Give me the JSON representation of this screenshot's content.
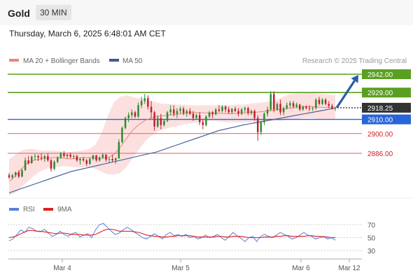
{
  "header": {
    "title": "Gold",
    "timeframe": "30 MIN"
  },
  "datetime": "Thursday, March 6, 2025 6:48:01 AM CET",
  "legend": {
    "ma20_bb": "MA 20 + Bollinger Bands",
    "ma50": "MA 50",
    "ma20_color": "#f08080",
    "ma50_color": "#3a5a9a"
  },
  "copyright": "Research © 2025 Trading Central",
  "colors": {
    "up": "#2e8b2e",
    "down": "#c0202c",
    "bb_fill": "#fbd5d5",
    "resistance": "#5aa020",
    "pivot": "#2a64d8",
    "support": "#e06060",
    "current": "#333333",
    "arrow": "#2a5ca8",
    "rsi": "#5b7fd8",
    "rsi_ma": "#e02020"
  },
  "levels": [
    {
      "value": 2942.0,
      "label": "2942.00",
      "kind": "resistance"
    },
    {
      "value": 2929.0,
      "label": "2929.00",
      "kind": "resistance"
    },
    {
      "value": 2918.25,
      "label": "2918.25",
      "kind": "current"
    },
    {
      "value": 2910.0,
      "label": "2910.00",
      "kind": "pivot"
    },
    {
      "value": 2900.0,
      "label": "2900.00",
      "kind": "support"
    },
    {
      "value": 2886.0,
      "label": "2886.00",
      "kind": "support"
    }
  ],
  "xaxis": {
    "ticks": [
      "Mar 4",
      "Mar 5",
      "Mar 6",
      "Mar 12"
    ]
  },
  "rsi_panel": {
    "legend_rsi": "RSI",
    "legend_ma": "9MA",
    "ticks": [
      "70",
      "50",
      "30"
    ],
    "levels": [
      70,
      50,
      30
    ],
    "ylim": [
      20,
      80
    ]
  },
  "chart_data": {
    "type": "candlestick",
    "ylim": [
      2856,
      2950
    ],
    "candles_ohlc": [
      [
        2870.5,
        2872.0,
        2868.0,
        2869.0
      ],
      [
        2869.0,
        2871.5,
        2867.5,
        2870.5
      ],
      [
        2870.5,
        2873.0,
        2869.0,
        2872.5
      ],
      [
        2872.5,
        2874.0,
        2868.5,
        2869.5
      ],
      [
        2869.5,
        2875.0,
        2869.0,
        2874.0
      ],
      [
        2874.0,
        2883.0,
        2873.5,
        2881.0
      ],
      [
        2881.0,
        2884.0,
        2878.0,
        2879.0
      ],
      [
        2879.0,
        2884.5,
        2878.5,
        2883.5
      ],
      [
        2883.5,
        2885.5,
        2881.0,
        2884.0
      ],
      [
        2884.0,
        2885.0,
        2880.5,
        2883.0
      ],
      [
        2883.0,
        2886.0,
        2881.0,
        2882.5
      ],
      [
        2882.5,
        2885.0,
        2880.0,
        2884.0
      ],
      [
        2884.0,
        2886.0,
        2880.0,
        2881.0
      ],
      [
        2881.0,
        2882.0,
        2873.0,
        2875.0
      ],
      [
        2875.0,
        2881.0,
        2874.0,
        2880.0
      ],
      [
        2880.0,
        2884.0,
        2879.0,
        2883.0
      ],
      [
        2883.0,
        2887.0,
        2882.0,
        2886.0
      ],
      [
        2886.0,
        2887.5,
        2883.0,
        2884.0
      ],
      [
        2884.0,
        2886.0,
        2882.0,
        2885.0
      ],
      [
        2885.0,
        2886.5,
        2882.5,
        2883.5
      ],
      [
        2883.5,
        2885.0,
        2882.0,
        2884.0
      ],
      [
        2884.0,
        2885.0,
        2880.0,
        2881.0
      ],
      [
        2881.0,
        2883.0,
        2878.0,
        2882.0
      ],
      [
        2882.0,
        2883.5,
        2880.0,
        2881.0
      ],
      [
        2881.0,
        2882.0,
        2877.0,
        2878.5
      ],
      [
        2878.5,
        2883.0,
        2878.0,
        2882.0
      ],
      [
        2882.0,
        2885.0,
        2881.0,
        2884.5
      ],
      [
        2884.5,
        2885.0,
        2880.0,
        2881.0
      ],
      [
        2881.0,
        2884.0,
        2880.0,
        2883.0
      ],
      [
        2883.0,
        2886.0,
        2882.0,
        2885.0
      ],
      [
        2885.0,
        2885.5,
        2880.0,
        2881.5
      ],
      [
        2881.5,
        2883.0,
        2879.0,
        2882.0
      ],
      [
        2882.0,
        2885.0,
        2880.0,
        2881.0
      ],
      [
        2881.0,
        2883.0,
        2878.5,
        2882.5
      ],
      [
        2882.5,
        2896.0,
        2882.0,
        2894.0
      ],
      [
        2894.0,
        2905.0,
        2893.0,
        2904.0
      ],
      [
        2904.0,
        2912.0,
        2903.0,
        2911.0
      ],
      [
        2911.0,
        2915.0,
        2908.0,
        2913.0
      ],
      [
        2913.0,
        2917.0,
        2911.0,
        2915.0
      ],
      [
        2915.0,
        2916.0,
        2911.0,
        2912.0
      ],
      [
        2912.0,
        2922.0,
        2911.0,
        2920.0
      ],
      [
        2920.0,
        2926.0,
        2918.0,
        2923.0
      ],
      [
        2923.0,
        2928.0,
        2921.0,
        2925.0
      ],
      [
        2925.0,
        2927.0,
        2917.0,
        2919.0
      ],
      [
        2919.0,
        2923.0,
        2911.0,
        2915.0
      ],
      [
        2915.0,
        2916.0,
        2902.0,
        2905.0
      ],
      [
        2905.0,
        2913.0,
        2904.0,
        2911.0
      ],
      [
        2911.0,
        2914.0,
        2903.0,
        2906.0
      ],
      [
        2906.0,
        2910.0,
        2905.0,
        2909.0
      ],
      [
        2909.0,
        2916.0,
        2908.0,
        2915.0
      ],
      [
        2915.0,
        2920.0,
        2913.0,
        2917.0
      ],
      [
        2917.0,
        2920.0,
        2912.0,
        2914.0
      ],
      [
        2914.0,
        2918.0,
        2911.0,
        2916.0
      ],
      [
        2916.0,
        2919.0,
        2914.0,
        2917.5
      ],
      [
        2917.5,
        2919.0,
        2913.0,
        2914.5
      ],
      [
        2914.5,
        2917.0,
        2912.0,
        2916.0
      ],
      [
        2916.0,
        2918.0,
        2913.0,
        2914.0
      ],
      [
        2914.0,
        2916.0,
        2909.0,
        2911.0
      ],
      [
        2911.0,
        2914.0,
        2910.0,
        2913.0
      ],
      [
        2913.0,
        2915.0,
        2906.0,
        2908.0
      ],
      [
        2908.0,
        2910.0,
        2903.0,
        2906.0
      ],
      [
        2906.0,
        2913.0,
        2905.0,
        2912.0
      ],
      [
        2912.0,
        2916.0,
        2911.0,
        2915.0
      ],
      [
        2915.0,
        2916.0,
        2911.0,
        2913.5
      ],
      [
        2913.5,
        2918.0,
        2913.0,
        2917.0
      ],
      [
        2917.0,
        2920.0,
        2915.0,
        2916.0
      ],
      [
        2916.0,
        2920.0,
        2915.0,
        2919.0
      ],
      [
        2919.0,
        2920.0,
        2915.0,
        2917.0
      ],
      [
        2917.0,
        2919.0,
        2914.0,
        2915.0
      ],
      [
        2915.0,
        2918.0,
        2914.0,
        2917.5
      ],
      [
        2917.5,
        2919.0,
        2915.0,
        2916.0
      ],
      [
        2916.0,
        2918.0,
        2912.0,
        2914.0
      ],
      [
        2914.0,
        2918.0,
        2913.0,
        2917.0
      ],
      [
        2917.0,
        2919.0,
        2915.0,
        2918.0
      ],
      [
        2918.0,
        2919.0,
        2913.0,
        2914.5
      ],
      [
        2914.5,
        2917.0,
        2913.0,
        2916.0
      ],
      [
        2916.0,
        2917.0,
        2909.0,
        2911.0
      ],
      [
        2911.0,
        2913.0,
        2895.0,
        2901.0
      ],
      [
        2901.0,
        2909.0,
        2899.0,
        2908.0
      ],
      [
        2908.0,
        2915.0,
        2906.0,
        2914.0
      ],
      [
        2914.0,
        2919.0,
        2912.0,
        2917.0
      ],
      [
        2917.0,
        2930.0,
        2916.0,
        2928.0
      ],
      [
        2928.0,
        2930.0,
        2915.0,
        2917.0
      ],
      [
        2917.0,
        2922.0,
        2916.0,
        2921.0
      ],
      [
        2921.0,
        2924.0,
        2913.0,
        2915.0
      ],
      [
        2915.0,
        2919.0,
        2913.0,
        2918.0
      ],
      [
        2918.0,
        2922.0,
        2917.0,
        2920.0
      ],
      [
        2920.0,
        2923.0,
        2918.0,
        2921.5
      ],
      [
        2921.5,
        2923.0,
        2918.0,
        2919.0
      ],
      [
        2919.0,
        2922.0,
        2918.0,
        2920.5
      ],
      [
        2920.5,
        2921.0,
        2916.0,
        2917.0
      ],
      [
        2917.0,
        2920.0,
        2916.0,
        2919.0
      ],
      [
        2919.0,
        2920.0,
        2917.0,
        2918.0
      ],
      [
        2918.0,
        2920.0,
        2916.0,
        2917.5
      ],
      [
        2917.5,
        2919.0,
        2916.0,
        2918.0
      ],
      [
        2918.0,
        2925.0,
        2917.0,
        2924.0
      ],
      [
        2924.0,
        2926.0,
        2920.0,
        2921.0
      ],
      [
        2921.0,
        2925.0,
        2920.0,
        2924.0
      ],
      [
        2924.0,
        2925.0,
        2920.0,
        2921.0
      ],
      [
        2921.0,
        2923.0,
        2918.0,
        2919.5
      ],
      [
        2919.5,
        2921.0,
        2917.0,
        2918.0
      ],
      [
        2918.0,
        2919.0,
        2916.0,
        2918.25
      ]
    ],
    "ma50": [
      2858,
      2859.5,
      2861,
      2862.5,
      2864,
      2865.5,
      2867,
      2868.5,
      2870,
      2871.5,
      2873,
      2874,
      2875,
      2876,
      2877,
      2878,
      2879,
      2880,
      2881,
      2882,
      2883,
      2884,
      2885,
      2886,
      2887,
      2888.5,
      2890,
      2891.5,
      2893,
      2894.5,
      2896,
      2897.5,
      2899,
      2900.5,
      2902,
      2903,
      2904,
      2905,
      2906,
      2906.8,
      2907.6,
      2908.4,
      2909.2,
      2910,
      2910.8,
      2911.6,
      2912.4,
      2913.2,
      2914,
      2914.8,
      2915.6,
      2916.4,
      2917.2,
      2918
    ],
    "ma20": [
      2866,
      2870,
      2875,
      2879,
      2881,
      2882,
      2882.5,
      2883,
      2883,
      2882.5,
      2882,
      2882.5,
      2883,
      2883,
      2882.8,
      2882.5,
      2883,
      2885,
      2890,
      2896,
      2902,
      2906,
      2909,
      2911,
      2912,
      2912.5,
      2913,
      2913.5,
      2914,
      2914.5,
      2914.8,
      2914.8,
      2914.6,
      2914.5,
      2914.4,
      2914.2,
      2914,
      2914.2,
      2914.5,
      2914.8,
      2915,
      2915.5,
      2916,
      2916.5,
      2917,
      2917.5,
      2918,
      2918.5,
      2919,
      2919,
      2918.8,
      2918.5,
      2918.3,
      2918.2
    ],
    "bb_upper": [
      2882,
      2885,
      2888,
      2889,
      2889,
      2888,
      2888,
      2888,
      2887.5,
      2887,
      2887,
      2887.5,
      2888,
      2889,
      2892,
      2900,
      2912,
      2922,
      2926,
      2927,
      2926,
      2925,
      2924,
      2923,
      2922,
      2921,
      2921,
      2920.5,
      2920.5,
      2920,
      2920,
      2920,
      2920,
      2920,
      2920,
      2920,
      2920,
      2920.5,
      2920.5,
      2921,
      2921.5,
      2922,
      2922.5,
      2923,
      2925,
      2927,
      2928,
      2928.5,
      2928.8,
      2929,
      2928.5,
      2928,
      2927.5,
      2927
    ],
    "bb_lower": [
      2856,
      2858,
      2862,
      2866,
      2870,
      2873,
      2875,
      2876,
      2876.5,
      2877,
      2876.5,
      2876,
      2876,
      2876.5,
      2875,
      2873,
      2871,
      2871,
      2872,
      2876,
      2882,
      2888,
      2894,
      2898,
      2901,
      2903,
      2904,
      2905,
      2906,
      2907,
      2907.5,
      2908,
      2908.5,
      2909,
      2908.5,
      2908,
      2908,
      2908,
      2908,
      2908,
      2908,
      2908,
      2908.5,
      2909,
      2909,
      2909.5,
      2910,
      2910.5,
      2911,
      2911,
      2910.5,
      2910,
      2910,
      2910
    ],
    "rsi": [
      45,
      48,
      55,
      62,
      58,
      66,
      64,
      60,
      59,
      63,
      57,
      52,
      55,
      60,
      55,
      52,
      56,
      58,
      51,
      54,
      56,
      50,
      62,
      70,
      72,
      66,
      60,
      55,
      57,
      62,
      66,
      63,
      58,
      54,
      50,
      48,
      52,
      56,
      52,
      48,
      55,
      58,
      53,
      55,
      52,
      55,
      50,
      52,
      48,
      50,
      54,
      50,
      52,
      55,
      50,
      46,
      52,
      58,
      53,
      49,
      44,
      50,
      52,
      44,
      52,
      55,
      52,
      50,
      54,
      58,
      55,
      52,
      48,
      50,
      54,
      58,
      54,
      52,
      48,
      50,
      52,
      48,
      50,
      46
    ],
    "rsi_ma": [
      50,
      51,
      53,
      56,
      59,
      61,
      61,
      60,
      60,
      59,
      58,
      57,
      56,
      57,
      57,
      56,
      55,
      55,
      55,
      54,
      54,
      54,
      55,
      58,
      61,
      63,
      63,
      62,
      60,
      60,
      60,
      60,
      59,
      58,
      56,
      54,
      53,
      52,
      52,
      51,
      51,
      52,
      52,
      53,
      53,
      53,
      53,
      52,
      51,
      51,
      51,
      51,
      51,
      52,
      52,
      51,
      51,
      52,
      52,
      52,
      51,
      50,
      50,
      50,
      50,
      51,
      51,
      51,
      52,
      52,
      53,
      53,
      52,
      52,
      52,
      52,
      53,
      53,
      52,
      52,
      51,
      51,
      50,
      50
    ]
  }
}
